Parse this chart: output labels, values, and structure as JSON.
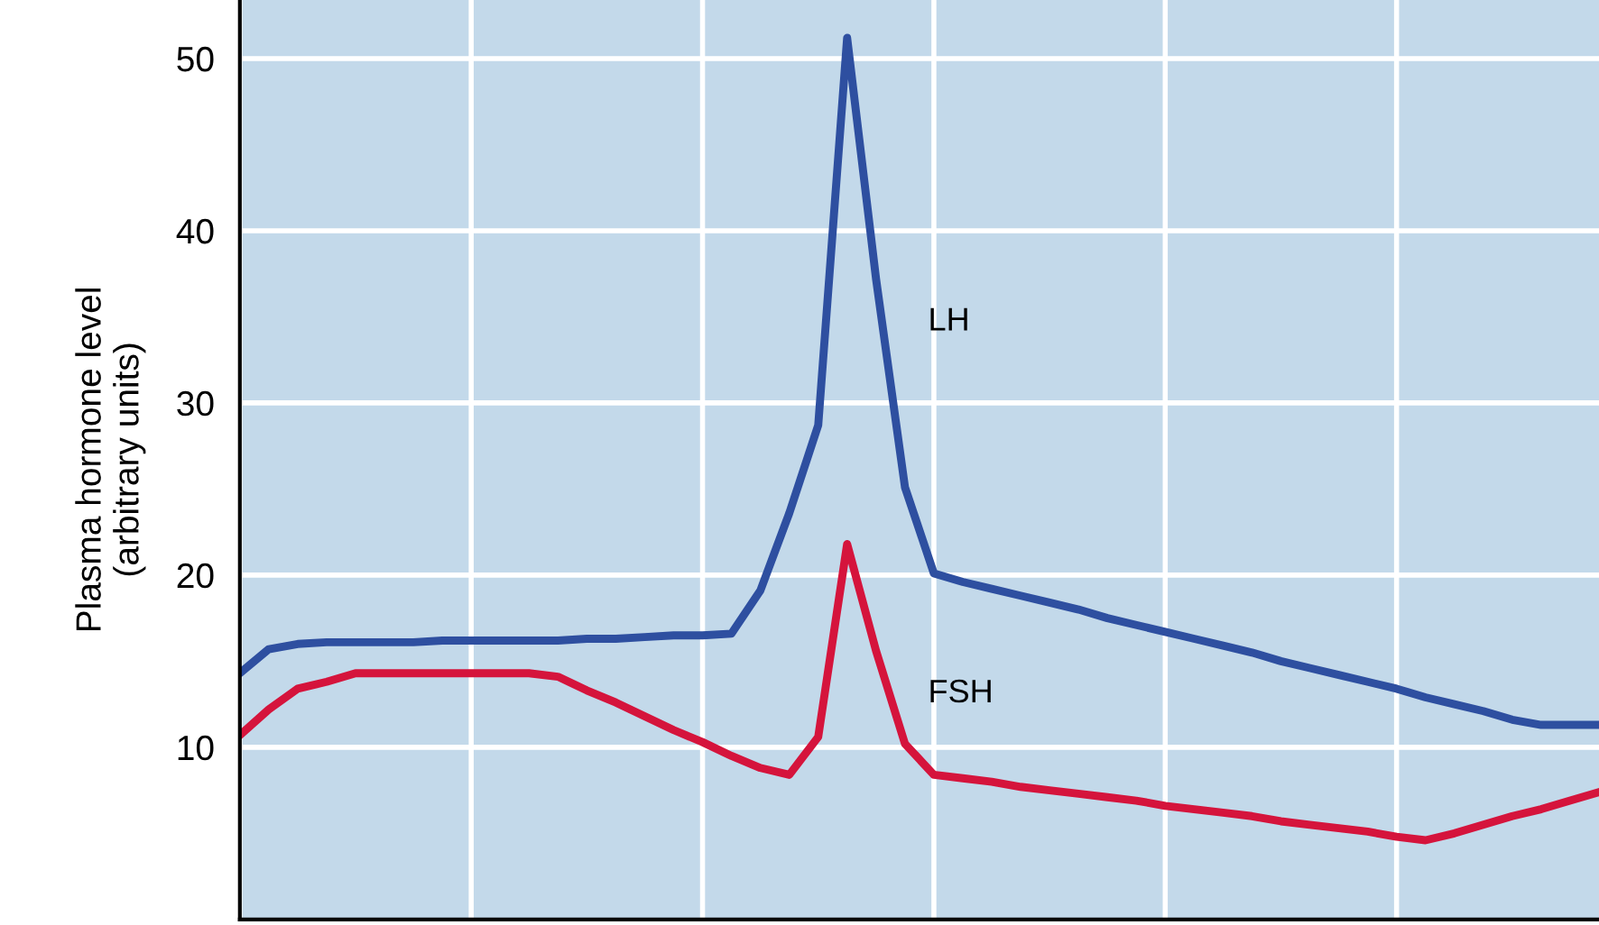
{
  "chart_data": {
    "type": "line",
    "ylabel": "Plasma hormone level\n(arbitrary units)",
    "categories": [
      null,
      null,
      null,
      null,
      null,
      null,
      null,
      null,
      null,
      null,
      null,
      null,
      null,
      null,
      null,
      null,
      null,
      null,
      null,
      null,
      null,
      null,
      null,
      null,
      null,
      null,
      null,
      null,
      null,
      null,
      null,
      null,
      null,
      null,
      null,
      null,
      null,
      null,
      null,
      null,
      null,
      null,
      null,
      null,
      null,
      null,
      null,
      null
    ],
    "ylim": [
      0,
      53.4
    ],
    "yticks": [
      10,
      20,
      30,
      40,
      50
    ],
    "tick_labels": "y",
    "grid": true,
    "legend": false,
    "marker": "none",
    "line_style": "solid",
    "series": [
      {
        "name": "LH",
        "color": "#2e4fa0",
        "values": [
          14.3,
          15.7,
          16.0,
          16.1,
          16.1,
          16.1,
          16.1,
          16.2,
          16.2,
          16.2,
          16.2,
          16.2,
          16.3,
          16.3,
          16.4,
          16.5,
          16.5,
          16.6,
          19.1,
          23.6,
          28.7,
          51.2,
          37.2,
          25.1,
          20.1,
          19.6,
          19.2,
          18.8,
          18.4,
          18.0,
          17.5,
          17.1,
          16.7,
          16.3,
          15.9,
          15.5,
          15.0,
          14.6,
          14.2,
          13.8,
          13.4,
          12.9,
          12.5,
          12.1,
          11.6,
          11.3,
          11.3,
          11.3
        ]
      },
      {
        "name": "FSH",
        "color": "#d5143c",
        "values": [
          10.7,
          12.2,
          13.4,
          13.8,
          14.3,
          14.3,
          14.3,
          14.3,
          14.3,
          14.3,
          14.3,
          14.1,
          13.3,
          12.6,
          11.8,
          11.0,
          10.3,
          9.5,
          8.8,
          8.4,
          10.6,
          21.8,
          15.6,
          10.2,
          8.4,
          8.2,
          8.0,
          7.7,
          7.5,
          7.3,
          7.1,
          6.9,
          6.6,
          6.4,
          6.2,
          6.0,
          5.7,
          5.5,
          5.3,
          5.1,
          4.8,
          4.6,
          5.0,
          5.5,
          6.0,
          6.4,
          6.9,
          7.4
        ]
      }
    ]
  }
}
